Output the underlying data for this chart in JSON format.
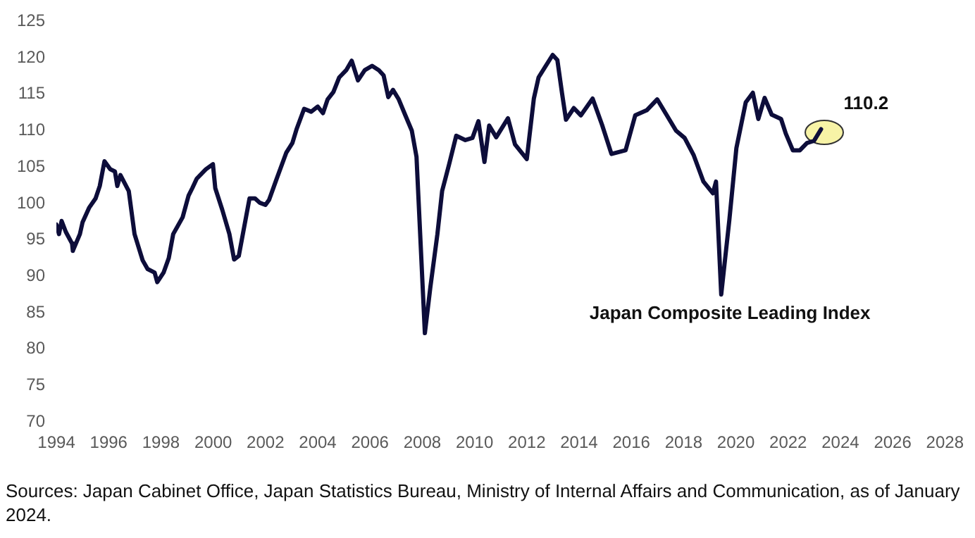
{
  "chart_data": {
    "type": "line",
    "xlim": [
      1994,
      2028
    ],
    "xticks": [
      1994,
      1996,
      1998,
      2000,
      2002,
      2004,
      2006,
      2008,
      2010,
      2012,
      2014,
      2016,
      2018,
      2020,
      2022,
      2024,
      2026,
      2028
    ],
    "ylim": [
      70,
      125
    ],
    "yticks": [
      70,
      75,
      80,
      85,
      90,
      95,
      100,
      105,
      110,
      115,
      120,
      125
    ],
    "grid": false,
    "legend": false,
    "marker": "none",
    "line_style": "solid",
    "series": [
      {
        "name": "Japan Composite Leading Index",
        "color": "#0d0d3a",
        "x": [
          1994.0,
          1994.1,
          1994.2,
          1994.36,
          1994.6,
          1994.63,
          1994.9,
          1995.0,
          1995.25,
          1995.5,
          1995.66,
          1995.84,
          1996.06,
          1996.24,
          1996.33,
          1996.45,
          1996.77,
          1996.99,
          1997.3,
          1997.49,
          1997.76,
          1997.86,
          1998.1,
          1998.3,
          1998.47,
          1998.83,
          1999.06,
          1999.2,
          1999.37,
          1999.72,
          1999.99,
          2000.08,
          2000.35,
          2000.62,
          2000.8,
          2000.98,
          2001.39,
          2001.6,
          2001.78,
          2002.0,
          2002.14,
          2002.4,
          2002.8,
          2003.03,
          2003.2,
          2003.48,
          2003.75,
          2004.0,
          2004.2,
          2004.38,
          2004.6,
          2004.82,
          2005.09,
          2005.3,
          2005.54,
          2005.8,
          2006.08,
          2006.34,
          2006.52,
          2006.7,
          2006.88,
          2007.1,
          2007.33,
          2007.6,
          2007.78,
          2008.1,
          2008.31,
          2008.58,
          2008.76,
          2009.03,
          2009.3,
          2009.65,
          2009.92,
          2010.15,
          2010.38,
          2010.56,
          2010.83,
          2011.28,
          2011.55,
          2012.0,
          2012.27,
          2012.45,
          2012.99,
          2013.17,
          2013.35,
          2013.5,
          2013.8,
          2014.07,
          2014.52,
          2014.88,
          2015.24,
          2015.78,
          2016.15,
          2016.59,
          2016.99,
          2017.31,
          2017.71,
          2018.04,
          2018.39,
          2018.76,
          2019.12,
          2019.24,
          2019.44,
          2019.75,
          2020.02,
          2020.38,
          2020.65,
          2020.86,
          2021.1,
          2021.37,
          2021.73,
          2021.91,
          2022.18,
          2022.45,
          2022.72,
          2022.99,
          2023.26
        ],
        "values": [
          97.1,
          95.8,
          97.6,
          96.1,
          94.5,
          93.5,
          95.8,
          97.4,
          99.4,
          100.7,
          102.4,
          105.8,
          104.7,
          104.4,
          102.4,
          103.9,
          101.7,
          95.8,
          92.2,
          91.0,
          90.5,
          89.2,
          90.5,
          92.5,
          95.8,
          98.1,
          101.1,
          102.1,
          103.4,
          104.7,
          105.4,
          102.1,
          99.1,
          95.8,
          92.3,
          92.8,
          100.7,
          100.7,
          100.1,
          99.8,
          100.5,
          103.1,
          107.0,
          108.3,
          110.3,
          113.0,
          112.6,
          113.3,
          112.4,
          114.3,
          115.3,
          117.3,
          118.3,
          119.6,
          116.9,
          118.3,
          118.9,
          118.3,
          117.6,
          114.6,
          115.6,
          114.3,
          112.3,
          110.0,
          106.4,
          82.2,
          88.5,
          95.8,
          101.7,
          105.4,
          109.3,
          108.7,
          109.0,
          111.3,
          105.7,
          110.7,
          109.1,
          111.7,
          108.1,
          106.1,
          114.4,
          117.3,
          120.4,
          119.7,
          115.1,
          111.5,
          113.1,
          112.1,
          114.4,
          110.8,
          106.8,
          107.3,
          112.1,
          112.8,
          114.3,
          112.4,
          110.0,
          109.0,
          106.6,
          103.0,
          101.4,
          103.0,
          87.5,
          97.7,
          107.6,
          113.9,
          115.2,
          111.6,
          114.5,
          112.2,
          111.6,
          109.6,
          107.3,
          107.3,
          108.3,
          108.6,
          110.2
        ]
      }
    ],
    "annotations": [
      {
        "text": "110.2",
        "x": 2023.26,
        "y": 110.2
      },
      "Sources: Japan Cabinet Office, Japan Statistics Bureau, Ministry of Internal Affairs and Communication, as of January 2024."
    ]
  }
}
